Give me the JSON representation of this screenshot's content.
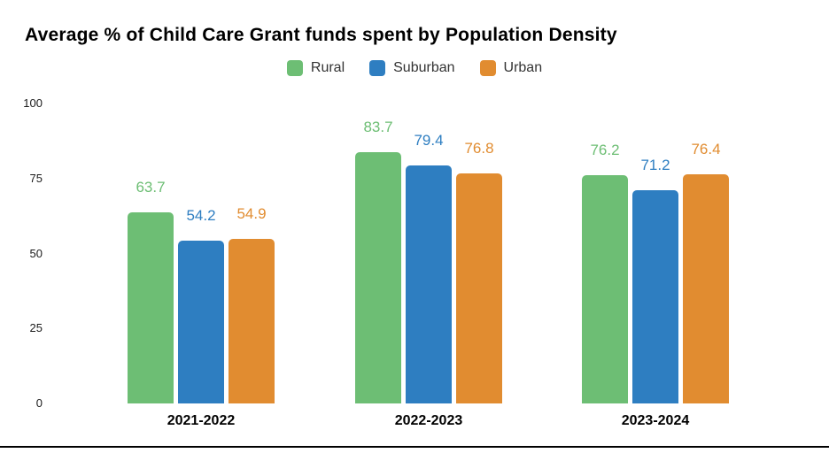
{
  "title": "Average % of Child Care Grant funds spent by Population Density",
  "chart_data": {
    "type": "bar",
    "title": "Average % of Child Care Grant funds spent by Population Density",
    "categories": [
      "2021-2022",
      "2022-2023",
      "2023-2024"
    ],
    "series": [
      {
        "name": "Rural",
        "color": "#6dbe74",
        "values": [
          63.7,
          83.7,
          76.2
        ]
      },
      {
        "name": "Suburban",
        "color": "#2e7ec1",
        "values": [
          54.2,
          79.4,
          71.2
        ]
      },
      {
        "name": "Urban",
        "color": "#e18c30",
        "values": [
          54.9,
          76.8,
          76.4
        ]
      }
    ],
    "xlabel": "",
    "ylabel": "",
    "ylim": [
      0,
      100
    ],
    "yticks": [
      0,
      25,
      50,
      75,
      100
    ],
    "grid": false,
    "legend_position": "top",
    "value_labels": true
  }
}
